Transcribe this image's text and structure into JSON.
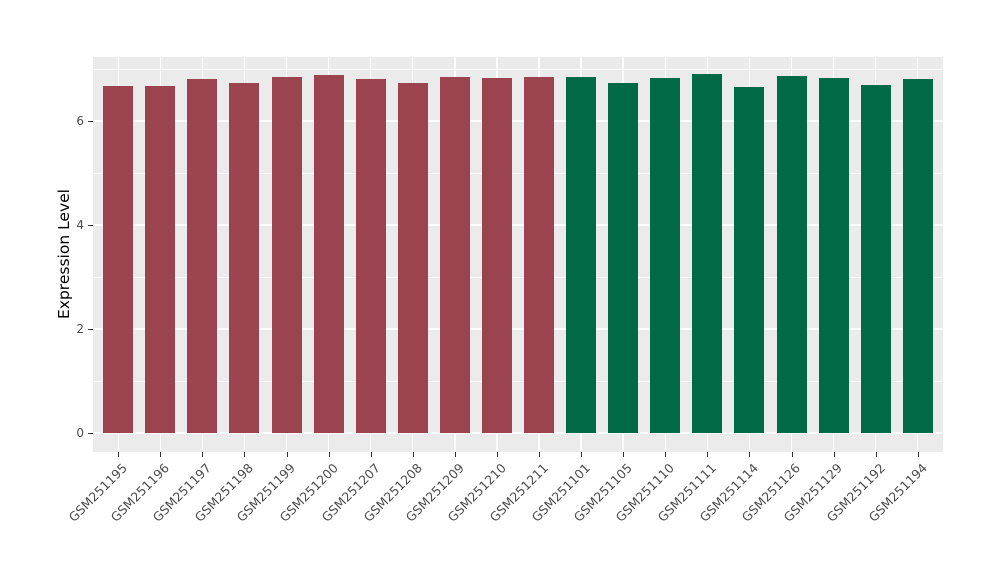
{
  "figure": {
    "background": "#FFFFFF",
    "panel_background": "#EBEBEB",
    "gridline_color": "#FFFFFF",
    "tick_mark_color": "#333333",
    "tick_label_color": "#4D4D4D",
    "group_colors": {
      "left_group": "#9B4450",
      "right_group": "#006946"
    }
  },
  "chart_data": {
    "type": "bar",
    "title": "",
    "xlabel": "",
    "ylabel": "Expression Level",
    "ylim": [
      -0.37,
      7.23
    ],
    "yticks_major": [
      0,
      2,
      4,
      6
    ],
    "yticks_minor": [
      1,
      3,
      5,
      7
    ],
    "grid": "on",
    "legend": "none",
    "x_label_angle": -45,
    "categories": [
      "GSM251195",
      "GSM251196",
      "GSM251197",
      "GSM251198",
      "GSM251199",
      "GSM251200",
      "GSM251207",
      "GSM251208",
      "GSM251209",
      "GSM251210",
      "GSM251211",
      "GSM251101",
      "GSM251105",
      "GSM251110",
      "GSM251111",
      "GSM251114",
      "GSM251126",
      "GSM251129",
      "GSM251192",
      "GSM251194"
    ],
    "values": [
      6.67,
      6.67,
      6.81,
      6.73,
      6.85,
      6.89,
      6.8,
      6.73,
      6.85,
      6.83,
      6.85,
      6.85,
      6.74,
      6.82,
      6.9,
      6.66,
      6.86,
      6.82,
      6.69,
      6.8
    ],
    "bar_colors": [
      "#9B4450",
      "#9B4450",
      "#9B4450",
      "#9B4450",
      "#9B4450",
      "#9B4450",
      "#9B4450",
      "#9B4450",
      "#9B4450",
      "#9B4450",
      "#9B4450",
      "#006946",
      "#006946",
      "#006946",
      "#006946",
      "#006946",
      "#006946",
      "#006946",
      "#006946",
      "#006946"
    ]
  }
}
